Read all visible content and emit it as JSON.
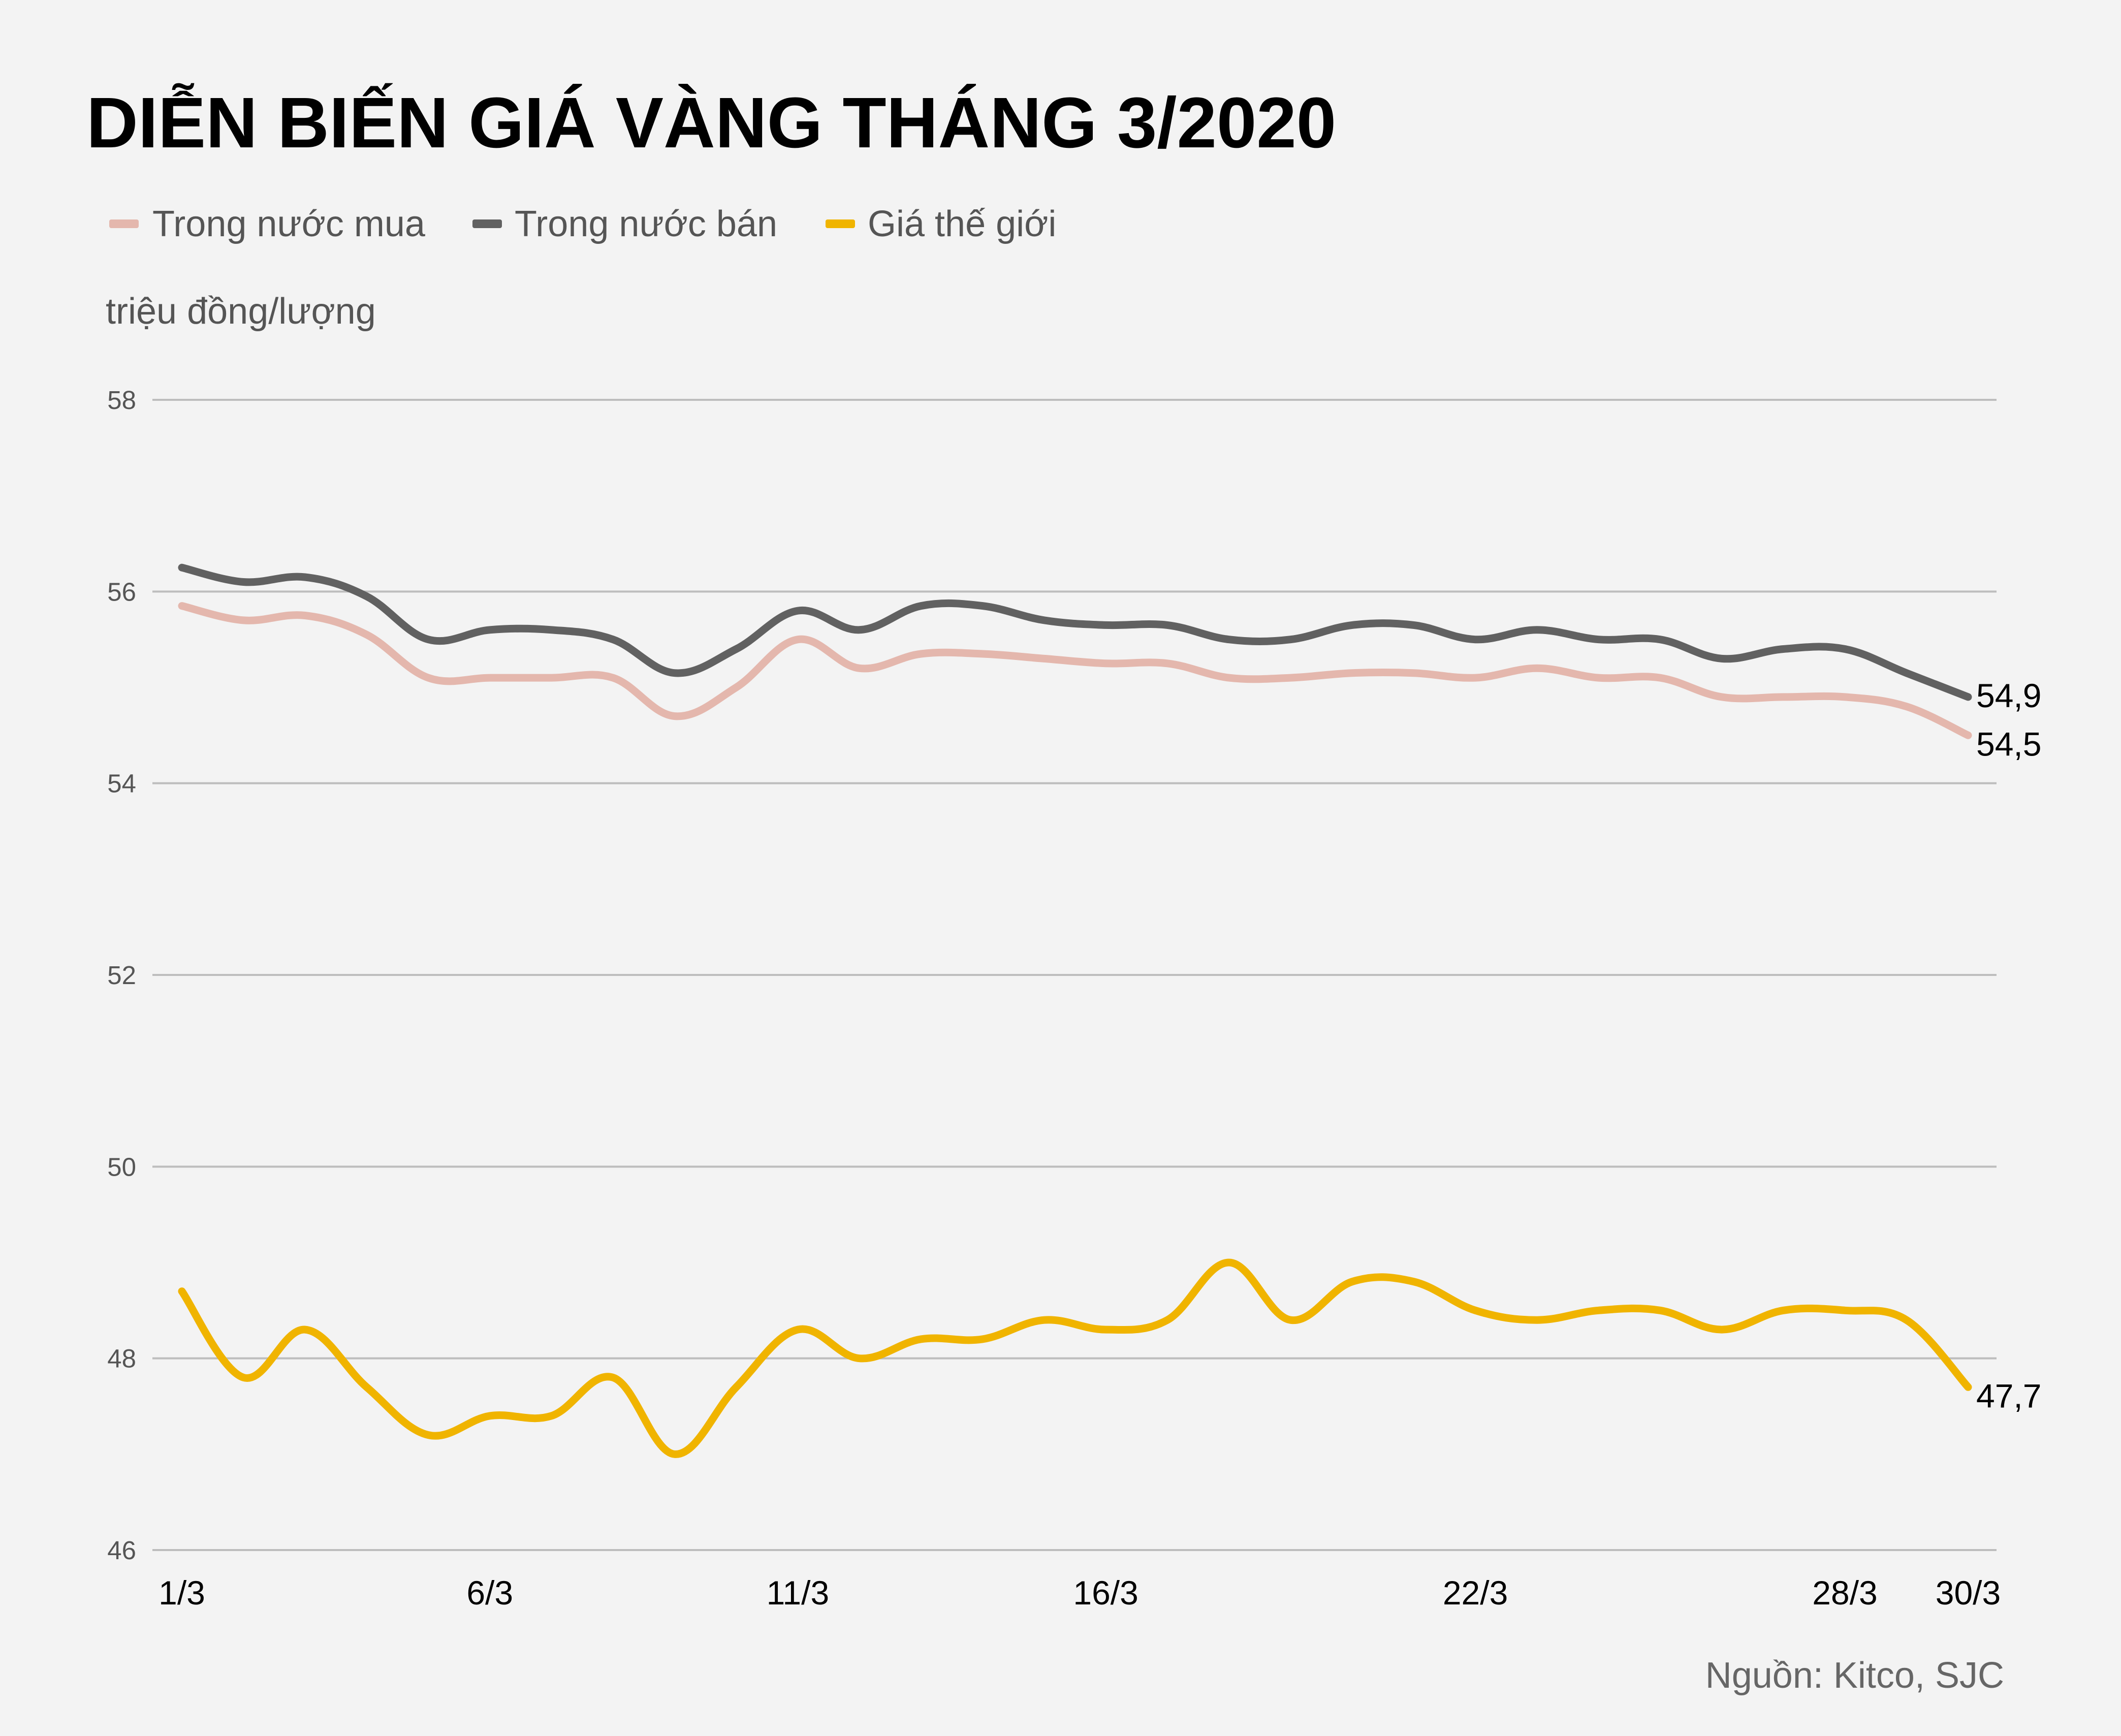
{
  "title": "DIỄN BIẾN GIÁ VÀNG THÁNG 3/2020",
  "unit": "triệu đồng/lượng",
  "source": "Nguồn: Kitco, SJC",
  "colors": {
    "background": "#f3f3f3",
    "grid": "#bdbdbd"
  },
  "legend": [
    {
      "label": "Trong nước mua",
      "color": "#e4b7ad"
    },
    {
      "label": "Trong nước bán",
      "color": "#616161"
    },
    {
      "label": "Giá thế giới",
      "color": "#f0b400"
    }
  ],
  "chart_data": {
    "type": "line",
    "title": "DIỄN BIẾN GIÁ VÀNG THÁNG 3/2020",
    "ylabel": "triệu đồng/lượng",
    "xlabel": "",
    "ylim": [
      46,
      58
    ],
    "yticks": [
      46,
      48,
      50,
      52,
      54,
      56,
      58
    ],
    "grid": true,
    "legend_position": "top-left",
    "x": [
      1,
      2,
      3,
      4,
      5,
      6,
      7,
      8,
      9,
      10,
      11,
      12,
      13,
      14,
      15,
      16,
      17,
      18,
      19,
      20,
      21,
      22,
      23,
      24,
      25,
      26,
      27,
      28,
      29,
      30
    ],
    "xticks": [
      {
        "x": 1,
        "label": "1/3"
      },
      {
        "x": 6,
        "label": "6/3"
      },
      {
        "x": 11,
        "label": "11/3"
      },
      {
        "x": 16,
        "label": "16/3"
      },
      {
        "x": 22,
        "label": "22/3"
      },
      {
        "x": 28,
        "label": "28/3"
      },
      {
        "x": 30,
        "label": "30/3"
      }
    ],
    "series": [
      {
        "name": "Trong nước mua",
        "values": [
          55.85,
          55.7,
          55.75,
          55.55,
          55.1,
          55.1,
          55.1,
          55.1,
          54.7,
          55.0,
          55.5,
          55.2,
          55.35,
          55.35,
          55.3,
          55.25,
          55.25,
          55.1,
          55.1,
          55.15,
          55.15,
          55.1,
          55.2,
          55.1,
          55.1,
          54.9,
          54.9,
          54.9,
          54.8,
          54.5
        ],
        "end_label": "54,5"
      },
      {
        "name": "Trong nước bán",
        "values": [
          56.25,
          56.1,
          56.15,
          55.95,
          55.5,
          55.6,
          55.6,
          55.5,
          55.15,
          55.4,
          55.8,
          55.6,
          55.85,
          55.85,
          55.7,
          55.65,
          55.65,
          55.5,
          55.5,
          55.65,
          55.65,
          55.5,
          55.6,
          55.5,
          55.5,
          55.3,
          55.4,
          55.4,
          55.15,
          54.9
        ],
        "end_label": "54,9"
      },
      {
        "name": "Giá thế giới",
        "values": [
          48.7,
          47.8,
          48.3,
          47.7,
          47.2,
          47.4,
          47.4,
          47.8,
          47.0,
          47.7,
          48.3,
          48.0,
          48.2,
          48.2,
          48.4,
          48.3,
          48.4,
          49.0,
          48.4,
          48.8,
          48.8,
          48.5,
          48.4,
          48.5,
          48.5,
          48.3,
          48.5,
          48.5,
          48.4,
          47.7
        ],
        "end_label": "47,7"
      }
    ]
  }
}
